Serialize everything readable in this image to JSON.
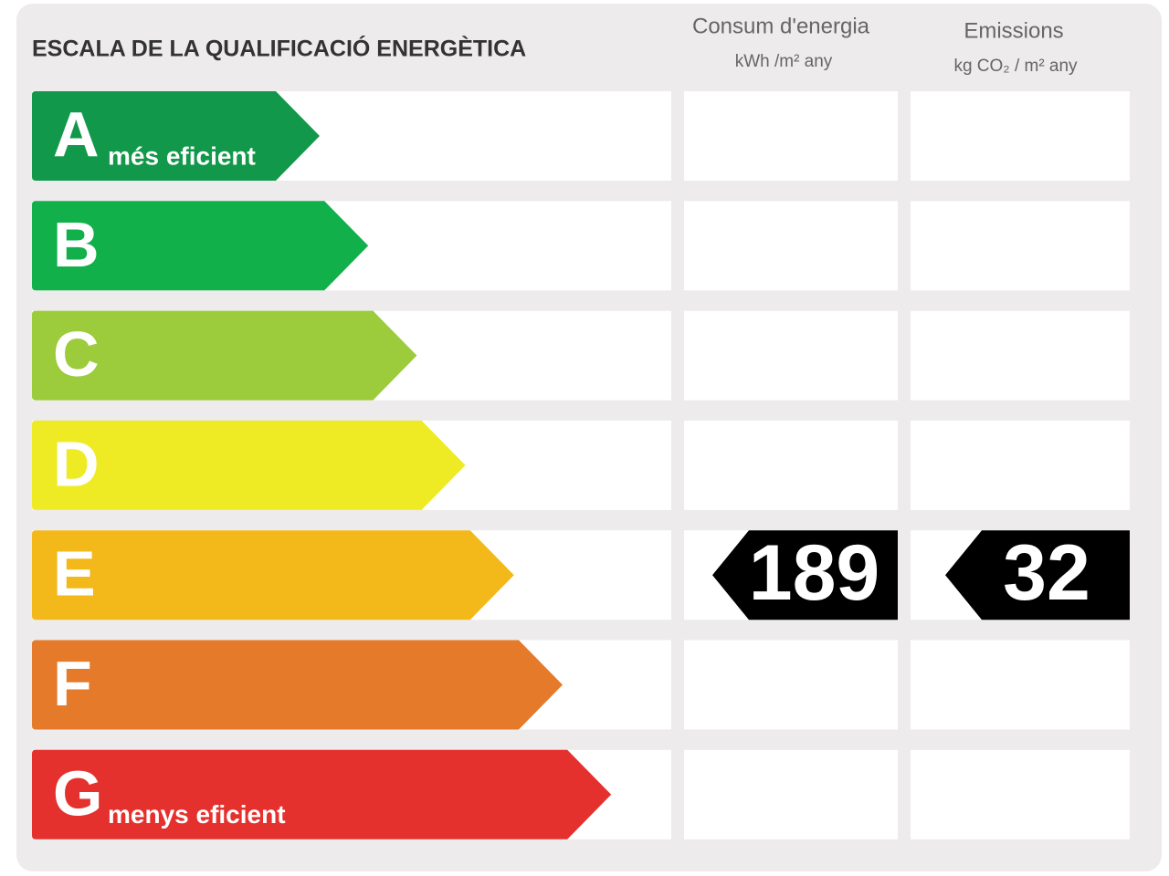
{
  "title": "ESCALA DE LA QUALIFICACIÓ ENERGÈTICA",
  "columns": [
    {
      "title": "Consum d'energia",
      "unit": "kWh /m² any"
    },
    {
      "title": "Emissions",
      "unit": "kg CO₂ / m² any"
    }
  ],
  "grades": [
    {
      "letter": "A",
      "label": "més eficient",
      "color": "#12984a"
    },
    {
      "letter": "B",
      "color": "#12b04a"
    },
    {
      "letter": "C",
      "color": "#9ccb3b"
    },
    {
      "letter": "D",
      "color": "#eeeb24"
    },
    {
      "letter": "E",
      "color": "#f3b91a"
    },
    {
      "letter": "F",
      "color": "#e57a2a"
    },
    {
      "letter": "G",
      "label": "menys eficient",
      "color": "#e5312e"
    }
  ],
  "rating": {
    "grade": "E",
    "values": [
      189,
      32
    ]
  }
}
